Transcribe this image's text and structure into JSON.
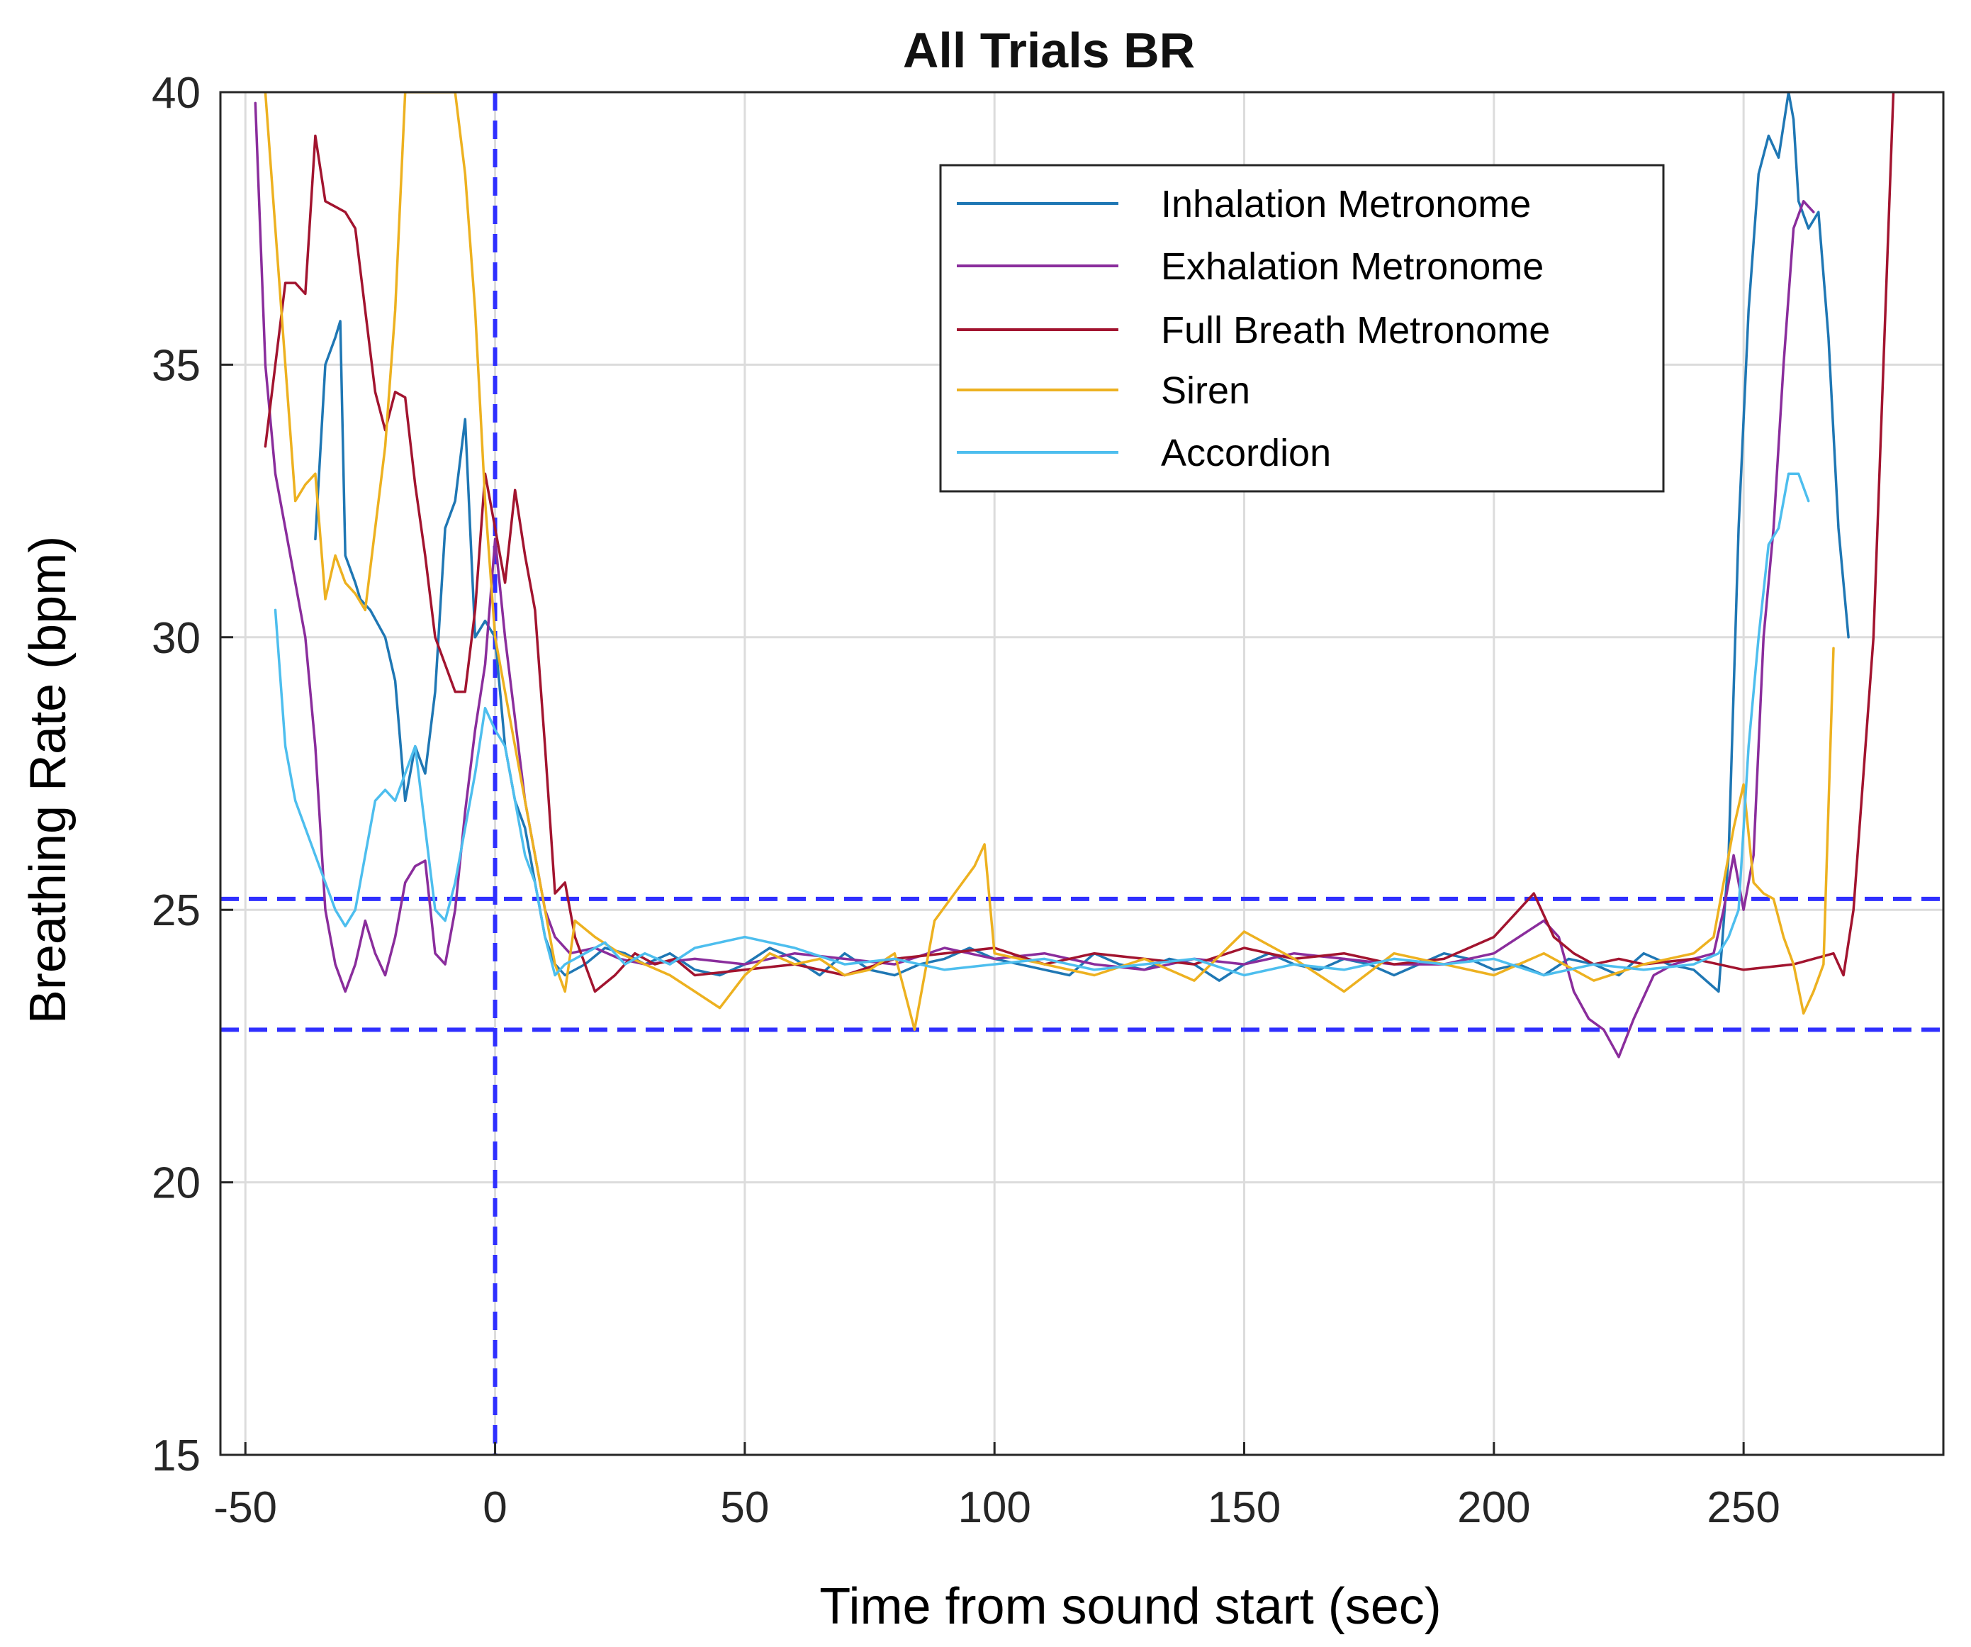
{
  "chart_data": {
    "type": "line",
    "title": "All Trials BR",
    "xlabel": "Time from sound start (sec)",
    "ylabel": "Breathing Rate (bpm)",
    "xlim": [
      -55,
      290
    ],
    "ylim": [
      15,
      40
    ],
    "xticks": [
      -50,
      0,
      50,
      100,
      150,
      200,
      250
    ],
    "yticks": [
      15,
      20,
      25,
      30,
      35,
      40
    ],
    "grid": true,
    "legend_position": "top-right",
    "reference_lines": {
      "vertical_x": [
        0
      ],
      "horizontal_y": [
        25.2,
        22.8
      ]
    },
    "series": [
      {
        "name": "Inhalation Metronome",
        "color": "#1f77b4",
        "x": [
          -36,
          -34,
          -32,
          -31,
          -30,
          -28,
          -27,
          -25,
          -22,
          -20,
          -18,
          -16,
          -14,
          -12,
          -10,
          -8,
          -6,
          -4,
          -2,
          0,
          2,
          4,
          6,
          8,
          10,
          12,
          14,
          18,
          22,
          26,
          30,
          35,
          40,
          45,
          50,
          55,
          60,
          65,
          70,
          75,
          80,
          85,
          90,
          95,
          100,
          105,
          110,
          115,
          120,
          125,
          130,
          135,
          140,
          145,
          150,
          155,
          160,
          165,
          170,
          175,
          180,
          185,
          190,
          195,
          200,
          205,
          210,
          215,
          220,
          225,
          230,
          235,
          240,
          245,
          247,
          249,
          251,
          253,
          255,
          257,
          259,
          260,
          261,
          263,
          265,
          267,
          269,
          271
        ],
        "y": [
          31.8,
          35.0,
          35.5,
          35.8,
          31.5,
          31.0,
          30.7,
          30.5,
          30.0,
          29.2,
          27.0,
          28.0,
          27.5,
          29.0,
          32.0,
          32.5,
          34.0,
          30.0,
          30.3,
          30.0,
          28.0,
          27.0,
          26.5,
          25.5,
          24.5,
          24.0,
          23.8,
          24.0,
          24.3,
          24.2,
          24.0,
          24.2,
          23.9,
          23.8,
          24.0,
          24.3,
          24.1,
          23.8,
          24.2,
          23.9,
          23.8,
          24.0,
          24.1,
          24.3,
          24.1,
          24.0,
          23.9,
          23.8,
          24.2,
          24.0,
          23.9,
          24.1,
          24.0,
          23.7,
          24.0,
          24.2,
          24.0,
          23.9,
          24.1,
          24.0,
          23.8,
          24.0,
          24.2,
          24.1,
          23.9,
          24.0,
          23.8,
          24.1,
          24.0,
          23.8,
          24.2,
          24.0,
          23.9,
          23.5,
          26.0,
          32.0,
          36.0,
          38.5,
          39.2,
          38.8,
          40.0,
          39.5,
          38.0,
          37.5,
          37.8,
          35.5,
          32.0,
          30.0
        ]
      },
      {
        "name": "Exhalation Metronome",
        "color": "#8a2d9c",
        "x": [
          -48,
          -46,
          -44,
          -42,
          -40,
          -38,
          -36,
          -34,
          -32,
          -30,
          -28,
          -26,
          -24,
          -22,
          -20,
          -18,
          -16,
          -14,
          -12,
          -10,
          -8,
          -6,
          -4,
          -2,
          0,
          2,
          4,
          6,
          8,
          10,
          12,
          15,
          20,
          25,
          30,
          40,
          50,
          60,
          70,
          80,
          90,
          100,
          110,
          120,
          130,
          140,
          150,
          160,
          170,
          180,
          190,
          200,
          205,
          210,
          213,
          216,
          219,
          222,
          225,
          228,
          232,
          236,
          240,
          244,
          246,
          248,
          250,
          252,
          254,
          256,
          258,
          260,
          262,
          264
        ],
        "y": [
          39.8,
          35.0,
          33.0,
          32.0,
          31.0,
          30.0,
          28.0,
          25.0,
          24.0,
          23.5,
          24.0,
          24.8,
          24.2,
          23.8,
          24.5,
          25.5,
          25.8,
          25.9,
          24.2,
          24.0,
          25.0,
          26.8,
          28.3,
          29.5,
          31.8,
          30.0,
          28.5,
          27.0,
          26.0,
          25.0,
          24.5,
          24.2,
          24.3,
          24.1,
          24.0,
          24.1,
          24.0,
          24.2,
          24.1,
          24.0,
          24.3,
          24.1,
          24.2,
          24.0,
          23.9,
          24.1,
          24.0,
          24.2,
          24.1,
          24.0,
          24.0,
          24.2,
          24.5,
          24.8,
          24.5,
          23.5,
          23.0,
          22.8,
          22.3,
          23.0,
          23.8,
          24.0,
          24.1,
          24.2,
          25.0,
          26.0,
          25.0,
          26.0,
          30.0,
          32.0,
          35.0,
          37.5,
          38.0,
          37.8
        ]
      },
      {
        "name": "Full Breath Metronome",
        "color": "#a2142f",
        "x": [
          -46,
          -44,
          -42,
          -40,
          -38,
          -36,
          -34,
          -32,
          -30,
          -28,
          -26,
          -24,
          -22,
          -20,
          -18,
          -16,
          -14,
          -12,
          -10,
          -8,
          -6,
          -4,
          -2,
          0,
          2,
          4,
          6,
          8,
          10,
          12,
          14,
          16,
          18,
          20,
          24,
          28,
          32,
          36,
          40,
          50,
          60,
          70,
          80,
          90,
          100,
          110,
          120,
          130,
          140,
          150,
          160,
          170,
          180,
          190,
          200,
          205,
          208,
          212,
          216,
          220,
          225,
          230,
          240,
          250,
          260,
          268,
          270,
          272,
          276,
          280
        ],
        "y": [
          33.5,
          35.0,
          36.5,
          36.5,
          36.3,
          39.2,
          38.0,
          37.9,
          37.8,
          37.5,
          36.0,
          34.5,
          33.8,
          34.5,
          34.4,
          32.8,
          31.5,
          30.0,
          29.5,
          29.0,
          29.0,
          30.5,
          33.0,
          32.0,
          31.0,
          32.7,
          31.5,
          30.5,
          28.0,
          25.3,
          25.5,
          24.5,
          24.0,
          23.5,
          23.8,
          24.2,
          24.0,
          24.1,
          23.8,
          23.9,
          24.0,
          23.8,
          24.1,
          24.2,
          24.3,
          24.0,
          24.2,
          24.1,
          24.0,
          24.3,
          24.1,
          24.2,
          24.0,
          24.1,
          24.5,
          25.0,
          25.3,
          24.5,
          24.2,
          24.0,
          24.1,
          24.0,
          24.1,
          23.9,
          24.0,
          24.2,
          23.8,
          25.0,
          30.0,
          40.0
        ]
      },
      {
        "name": "Siren",
        "color": "#edb120",
        "x": [
          -46,
          -44,
          -42,
          -40,
          -38,
          -36,
          -34,
          -32,
          -30,
          -28,
          -26,
          -24,
          -22,
          -20,
          -18,
          -16,
          -14,
          -12,
          -10,
          -8,
          -6,
          -4,
          -2,
          0,
          2,
          4,
          6,
          8,
          10,
          12,
          14,
          16,
          20,
          25,
          30,
          35,
          40,
          45,
          50,
          55,
          60,
          65,
          70,
          75,
          80,
          84,
          88,
          92,
          96,
          98,
          100,
          110,
          120,
          130,
          140,
          150,
          160,
          170,
          180,
          190,
          200,
          210,
          220,
          230,
          240,
          244,
          246,
          248,
          250,
          252,
          254,
          256,
          258,
          260,
          262,
          264,
          266,
          268
        ],
        "y": [
          40.0,
          37.5,
          35.0,
          32.5,
          32.8,
          33.0,
          30.7,
          31.5,
          31.0,
          30.8,
          30.5,
          32.0,
          33.5,
          36.0,
          40.0,
          40.0,
          40.0,
          40.0,
          40.0,
          40.0,
          38.5,
          36.0,
          32.5,
          30.0,
          29.0,
          28.0,
          27.0,
          26.0,
          25.0,
          24.0,
          23.5,
          24.8,
          24.5,
          24.2,
          24.0,
          23.8,
          23.5,
          23.2,
          23.8,
          24.2,
          24.0,
          24.1,
          23.8,
          23.9,
          24.2,
          22.8,
          24.8,
          25.3,
          25.8,
          26.2,
          24.2,
          24.0,
          23.8,
          24.1,
          23.7,
          24.6,
          24.1,
          23.5,
          24.2,
          24.0,
          23.8,
          24.2,
          23.7,
          24.0,
          24.2,
          24.5,
          25.5,
          26.5,
          27.3,
          25.5,
          25.3,
          25.2,
          24.5,
          24.0,
          23.1,
          23.5,
          24.0,
          29.8
        ]
      },
      {
        "name": "Accordion",
        "color": "#4dbeee",
        "x": [
          -44,
          -42,
          -40,
          -38,
          -36,
          -34,
          -32,
          -30,
          -28,
          -26,
          -24,
          -22,
          -20,
          -18,
          -16,
          -14,
          -12,
          -10,
          -8,
          -6,
          -4,
          -2,
          0,
          2,
          4,
          6,
          8,
          10,
          12,
          14,
          18,
          22,
          26,
          30,
          35,
          40,
          50,
          60,
          70,
          80,
          90,
          100,
          110,
          120,
          130,
          140,
          150,
          160,
          170,
          180,
          190,
          200,
          210,
          220,
          230,
          240,
          245,
          247,
          249,
          251,
          253,
          255,
          257,
          259,
          261,
          263
        ],
        "y": [
          30.5,
          28.0,
          27.0,
          26.5,
          26.0,
          25.5,
          25.0,
          24.7,
          25.0,
          26.0,
          27.0,
          27.2,
          27.0,
          27.5,
          28.0,
          26.5,
          25.0,
          24.8,
          25.5,
          26.5,
          27.5,
          28.7,
          28.3,
          28.0,
          27.0,
          26.0,
          25.5,
          24.5,
          23.8,
          24.0,
          24.2,
          24.4,
          24.0,
          24.2,
          24.0,
          24.3,
          24.5,
          24.3,
          24.0,
          24.1,
          23.9,
          24.0,
          24.1,
          23.9,
          24.0,
          24.1,
          23.8,
          24.0,
          23.9,
          24.1,
          24.0,
          24.1,
          23.8,
          24.0,
          23.9,
          24.0,
          24.2,
          24.5,
          25.0,
          28.0,
          30.0,
          31.7,
          32.0,
          33.0,
          33.0,
          32.5
        ]
      }
    ]
  }
}
